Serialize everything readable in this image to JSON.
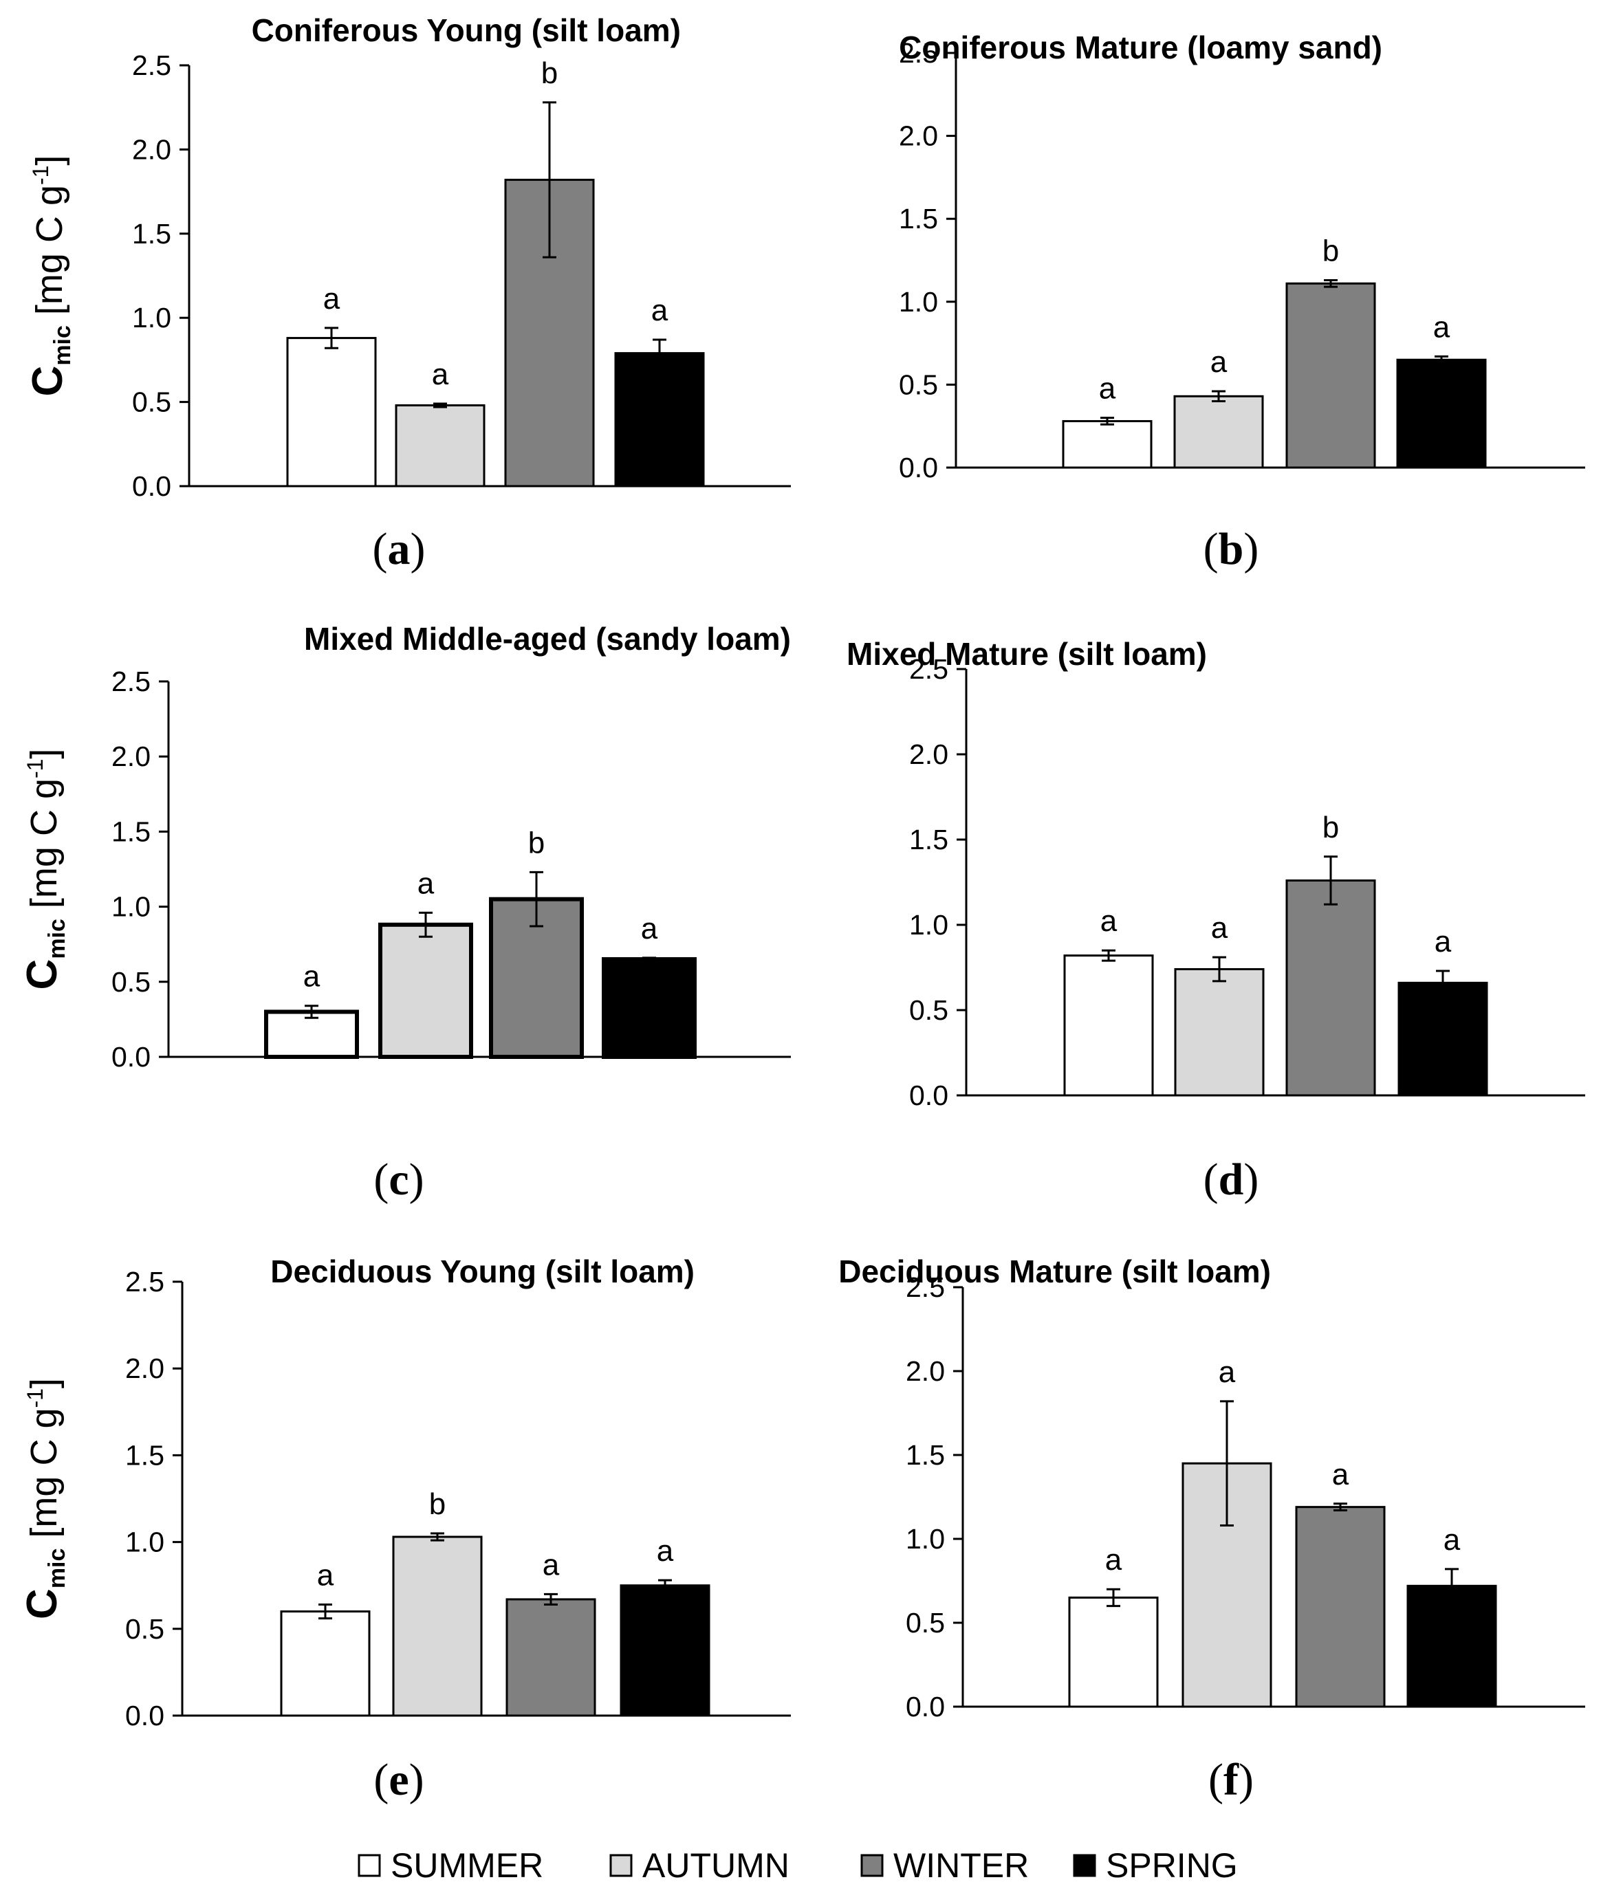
{
  "legend": [
    {
      "label": "SUMMER",
      "color": "#ffffff"
    },
    {
      "label": "AUTUMN",
      "color": "#d9d9d9"
    },
    {
      "label": "WINTER",
      "color": "#808080"
    },
    {
      "label": "SPRING",
      "color": "#000000"
    }
  ],
  "chart_data": [
    {
      "type": "bar",
      "panel_label": "a",
      "title": "Coniferous Young (silt loam)",
      "ylabel": {
        "main": "C",
        "sub": "mic",
        "unit": " [mg C g",
        "sup": "-1",
        "close": "]"
      },
      "yticks": [
        "0.0",
        "0.5",
        "1.0",
        "1.5",
        "2.0",
        "2.5"
      ],
      "ylim": [
        0,
        2.5
      ],
      "categories": [
        "SUMMER",
        "AUTUMN",
        "WINTER",
        "SPRING"
      ],
      "values": [
        0.88,
        0.48,
        1.82,
        0.79
      ],
      "errors": [
        0.06,
        0.01,
        0.46,
        0.08
      ],
      "significance": [
        "a",
        "a",
        "b",
        "a"
      ]
    },
    {
      "type": "bar",
      "panel_label": "b",
      "title": "Coniferous Mature (loamy sand)",
      "ylabel": null,
      "yticks": [
        "0.0",
        "0.5",
        "1.0",
        "1.5",
        "2.0",
        "2.5"
      ],
      "ylim": [
        0,
        2.5
      ],
      "categories": [
        "SUMMER",
        "AUTUMN",
        "WINTER",
        "SPRING"
      ],
      "values": [
        0.28,
        0.43,
        1.11,
        0.65
      ],
      "errors": [
        0.02,
        0.03,
        0.02,
        0.02
      ],
      "significance": [
        "a",
        "a",
        "b",
        "a"
      ]
    },
    {
      "type": "bar",
      "panel_label": "c",
      "title": "Mixed Middle-aged (sandy loam)",
      "ylabel": {
        "main": "C",
        "sub": "mic",
        "unit": " [mg C g",
        "sup": "-1",
        "close": "]"
      },
      "yticks": [
        "0.0",
        "0.5",
        "1.0",
        "1.5",
        "2.0",
        "2.5"
      ],
      "ylim": [
        0,
        2.5
      ],
      "categories": [
        "SUMMER",
        "AUTUMN",
        "WINTER",
        "SPRING"
      ],
      "values": [
        0.3,
        0.88,
        1.05,
        0.65
      ],
      "errors": [
        0.04,
        0.08,
        0.18,
        0.01
      ],
      "significance": [
        "a",
        "a",
        "b",
        "a"
      ]
    },
    {
      "type": "bar",
      "panel_label": "d",
      "title": "Mixed Mature (silt loam)",
      "ylabel": null,
      "yticks": [
        "0.0",
        "0.5",
        "1.0",
        "1.5",
        "2.0",
        "2.5"
      ],
      "ylim": [
        0,
        2.5
      ],
      "categories": [
        "SUMMER",
        "AUTUMN",
        "WINTER",
        "SPRING"
      ],
      "values": [
        0.82,
        0.74,
        1.26,
        0.66
      ],
      "errors": [
        0.03,
        0.07,
        0.14,
        0.07
      ],
      "significance": [
        "a",
        "a",
        "b",
        "a"
      ]
    },
    {
      "type": "bar",
      "panel_label": "e",
      "title": "Deciduous Young (silt loam)",
      "ylabel": {
        "main": "C",
        "sub": "mic",
        "unit": " [mg C g",
        "sup": "-1",
        "close": "]"
      },
      "yticks": [
        "0.0",
        "0.5",
        "1.0",
        "1.5",
        "2.0",
        "2.5"
      ],
      "ylim": [
        0,
        2.5
      ],
      "categories": [
        "SUMMER",
        "AUTUMN",
        "WINTER",
        "SPRING"
      ],
      "values": [
        0.6,
        1.03,
        0.67,
        0.75
      ],
      "errors": [
        0.04,
        0.02,
        0.03,
        0.03
      ],
      "significance": [
        "a",
        "b",
        "a",
        "a"
      ]
    },
    {
      "type": "bar",
      "panel_label": "f",
      "title": "Deciduous Mature (silt loam)",
      "ylabel": null,
      "yticks": [
        "0.0",
        "0.5",
        "1.0",
        "1.5",
        "2.0",
        "2.5"
      ],
      "ylim": [
        0,
        2.5
      ],
      "categories": [
        "SUMMER",
        "AUTUMN",
        "WINTER",
        "SPRING"
      ],
      "values": [
        0.65,
        1.45,
        1.19,
        0.72
      ],
      "errors": [
        0.05,
        0.37,
        0.02,
        0.1
      ],
      "significance": [
        "a",
        "a",
        "a",
        "a"
      ]
    }
  ]
}
